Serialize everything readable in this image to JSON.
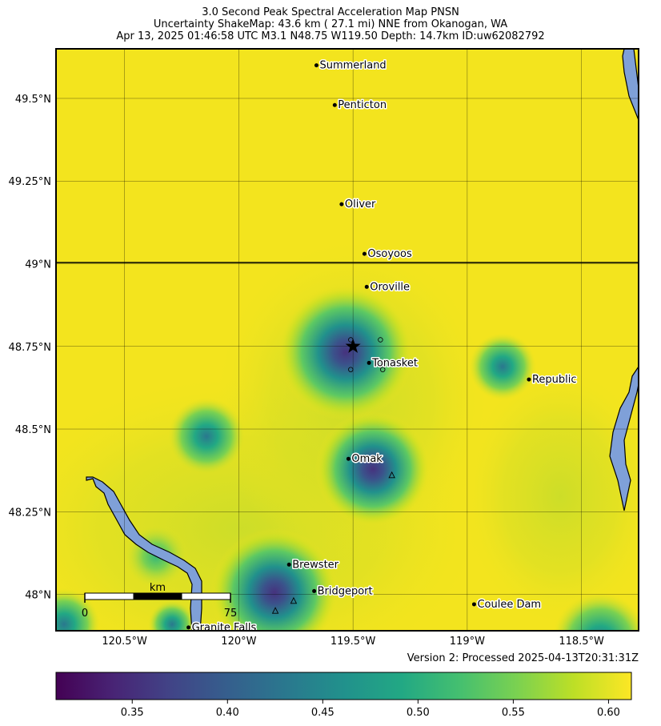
{
  "title": {
    "line1": "3.0 Second Peak Spectral Acceleration Map PNSN",
    "line2": "Uncertainty ShakeMap: 43.6 km (  27.1 mi) NNE from Okanogan, WA",
    "line3": "Apr 13, 2025 01:46:58 UTC M3.1 N48.75 W119.50 Depth: 14.7km ID:uw62082792"
  },
  "map": {
    "lon_range": [
      -120.8,
      -118.25
    ],
    "lat_range": [
      47.89,
      49.65
    ],
    "lat_ticks": [
      {
        "value": 49.5,
        "label": "49.5°N"
      },
      {
        "value": 49.25,
        "label": "49.25°N"
      },
      {
        "value": 49.0,
        "label": "49°N"
      },
      {
        "value": 48.75,
        "label": "48.75°N"
      },
      {
        "value": 48.5,
        "label": "48.5°N"
      },
      {
        "value": 48.25,
        "label": "48.25°N"
      },
      {
        "value": 48.0,
        "label": "48°N"
      }
    ],
    "lon_ticks": [
      {
        "value": -120.5,
        "label": "120.5°W"
      },
      {
        "value": -120.0,
        "label": "120°W"
      },
      {
        "value": -119.5,
        "label": "119.5°W"
      },
      {
        "value": -119.0,
        "label": "119°W"
      },
      {
        "value": -118.5,
        "label": "118.5°W"
      }
    ],
    "epicenter": {
      "lon": -119.5,
      "lat": 48.75
    },
    "cities": [
      {
        "name": "Summerland",
        "lon": -119.66,
        "lat": 49.6
      },
      {
        "name": "Penticton",
        "lon": -119.58,
        "lat": 49.48
      },
      {
        "name": "Oliver",
        "lon": -119.55,
        "lat": 49.18
      },
      {
        "name": "Osoyoos",
        "lon": -119.45,
        "lat": 49.03
      },
      {
        "name": "Oroville",
        "lon": -119.44,
        "lat": 48.93
      },
      {
        "name": "Tonasket",
        "lon": -119.43,
        "lat": 48.7
      },
      {
        "name": "Republic",
        "lon": -118.73,
        "lat": 48.65
      },
      {
        "name": "Omak",
        "lon": -119.52,
        "lat": 48.41
      },
      {
        "name": "Brewster",
        "lon": -119.78,
        "lat": 48.09
      },
      {
        "name": "Bridgeport",
        "lon": -119.67,
        "lat": 48.01
      },
      {
        "name": "Coulee Dam",
        "lon": -118.97,
        "lat": 47.97
      },
      {
        "name": "Granite Falls",
        "lon": -120.22,
        "lat": 47.9
      }
    ],
    "stations": [
      {
        "lon": -119.51,
        "lat": 48.77
      },
      {
        "lon": -119.38,
        "lat": 48.77
      },
      {
        "lon": -119.51,
        "lat": 48.68
      },
      {
        "lon": -119.37,
        "lat": 48.68
      }
    ],
    "triangles": [
      {
        "lon": -119.33,
        "lat": 48.36
      },
      {
        "lon": -119.76,
        "lat": 47.98
      },
      {
        "lon": -119.84,
        "lat": 47.95
      }
    ],
    "scalebar": {
      "label": "km",
      "start": "0",
      "end": "75"
    }
  },
  "colorbar": {
    "min": 0.31,
    "max": 0.612,
    "ticks": [
      {
        "value": 0.35,
        "label": "0.35"
      },
      {
        "value": 0.4,
        "label": "0.40"
      },
      {
        "value": 0.45,
        "label": "0.45"
      },
      {
        "value": 0.5,
        "label": "0.50"
      },
      {
        "value": 0.55,
        "label": "0.55"
      },
      {
        "value": 0.6,
        "label": "0.60"
      }
    ],
    "colors": [
      "#440154",
      "#3b528b",
      "#21918c",
      "#5ec962",
      "#fde725"
    ]
  },
  "version": "Version 2: Processed 2025-04-13T20:31:31Z",
  "colors": {
    "water": "#7fa0d8",
    "field": "#f2e31e",
    "frame": "#000000"
  }
}
